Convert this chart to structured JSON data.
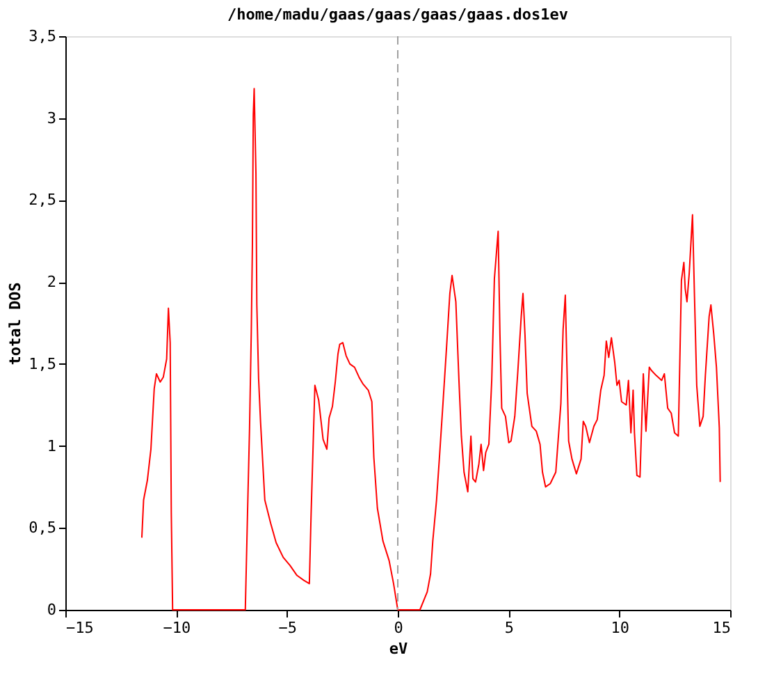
{
  "chart_data": {
    "type": "line",
    "title": "/home/madu/gaas/gaas/gaas/gaas.dos1ev",
    "xlabel": "eV",
    "ylabel": "total DOS",
    "xlim": [
      -15,
      15
    ],
    "xticks": [
      -15,
      -10,
      -5,
      0,
      5,
      10,
      15
    ],
    "ylim": [
      0,
      3.5
    ],
    "yticks": [
      0,
      {
        "value": 0.5,
        "label": "0,5"
      },
      1,
      {
        "value": 1.5,
        "label": "1,5"
      },
      2,
      {
        "value": 2.5,
        "label": "2,5"
      },
      3,
      {
        "value": 3.5,
        "label": "3,5"
      }
    ],
    "grid": false,
    "marker": "none",
    "line_style": "solid",
    "ref_lines": [
      {
        "axis": "x",
        "value": 0,
        "color": "#a0a0a0",
        "line_style": "dashed"
      }
    ],
    "series": [
      {
        "color": "#ff0000",
        "x": [
          -11.55,
          -11.47,
          -11.3,
          -11.14,
          -10.99,
          -10.89,
          -10.72,
          -10.58,
          -10.43,
          -10.35,
          -10.27,
          -10.22,
          -10.16,
          -6.88,
          -6.78,
          -6.69,
          -6.61,
          -6.56,
          -6.52,
          -6.48,
          -6.4,
          -6.36,
          -6.28,
          -6.19,
          -6.0,
          -5.74,
          -5.49,
          -5.17,
          -4.86,
          -4.55,
          -4.24,
          -3.99,
          -3.91,
          -3.74,
          -3.57,
          -3.37,
          -3.2,
          -3.1,
          -2.95,
          -2.82,
          -2.7,
          -2.62,
          -2.48,
          -2.33,
          -2.16,
          -1.95,
          -1.75,
          -1.58,
          -1.33,
          -1.17,
          -1.08,
          -0.92,
          -0.67,
          -0.39,
          -0.19,
          0.0,
          1.0,
          1.33,
          1.48,
          1.58,
          1.75,
          1.89,
          2.04,
          2.2,
          2.35,
          2.45,
          2.62,
          2.76,
          2.87,
          2.99,
          3.16,
          3.3,
          3.39,
          3.51,
          3.66,
          3.76,
          3.87,
          3.97,
          4.11,
          4.24,
          4.36,
          4.53,
          4.61,
          4.69,
          4.86,
          5.01,
          5.11,
          5.28,
          5.42,
          5.57,
          5.65,
          5.74,
          5.84,
          6.05,
          6.25,
          6.42,
          6.53,
          6.67,
          6.88,
          7.13,
          7.36,
          7.46,
          7.56,
          7.71,
          7.86,
          8.06,
          8.27,
          8.37,
          8.48,
          8.65,
          8.85,
          9.0,
          9.16,
          9.31,
          9.41,
          9.52,
          9.64,
          9.79,
          9.89,
          9.99,
          10.1,
          10.31,
          10.41,
          10.52,
          10.62,
          10.68,
          10.79,
          10.93,
          11.08,
          11.2,
          11.35,
          11.45,
          11.66,
          11.91,
          12.03,
          12.18,
          12.34,
          12.49,
          12.66,
          12.8,
          12.91,
          12.97,
          13.05,
          13.15,
          13.3,
          13.39,
          13.49,
          13.63,
          13.78,
          13.88,
          14.05,
          14.13,
          14.26,
          14.38,
          14.51,
          14.55
        ],
        "values": [
          0.44,
          0.67,
          0.79,
          0.98,
          1.35,
          1.44,
          1.39,
          1.42,
          1.53,
          1.84,
          1.63,
          0.59,
          0,
          0,
          0.59,
          1.1,
          1.7,
          2.22,
          3.02,
          3.18,
          2.66,
          1.86,
          1.41,
          1.14,
          0.67,
          0.53,
          0.41,
          0.32,
          0.27,
          0.21,
          0.18,
          0.16,
          0.59,
          1.37,
          1.28,
          1.04,
          0.98,
          1.17,
          1.24,
          1.39,
          1.56,
          1.62,
          1.63,
          1.55,
          1.5,
          1.48,
          1.42,
          1.38,
          1.34,
          1.27,
          0.93,
          0.62,
          0.42,
          0.3,
          0.16,
          0,
          0,
          0.11,
          0.22,
          0.42,
          0.67,
          0.95,
          1.26,
          1.6,
          1.93,
          2.04,
          1.88,
          1.4,
          1.06,
          0.84,
          0.72,
          1.06,
          0.8,
          0.78,
          0.89,
          1.01,
          0.85,
          0.96,
          1.01,
          1.4,
          2.02,
          2.31,
          1.68,
          1.23,
          1.18,
          1.02,
          1.03,
          1.18,
          1.46,
          1.79,
          1.93,
          1.68,
          1.32,
          1.12,
          1.09,
          1.01,
          0.84,
          0.75,
          0.77,
          0.84,
          1.26,
          1.71,
          1.92,
          1.03,
          0.92,
          0.83,
          0.92,
          1.15,
          1.12,
          1.02,
          1.12,
          1.16,
          1.34,
          1.43,
          1.64,
          1.54,
          1.66,
          1.51,
          1.37,
          1.4,
          1.27,
          1.25,
          1.4,
          1.08,
          1.34,
          1.08,
          0.82,
          0.81,
          1.44,
          1.09,
          1.48,
          1.46,
          1.43,
          1.4,
          1.44,
          1.23,
          1.2,
          1.08,
          1.06,
          2.01,
          2.12,
          1.96,
          1.88,
          2.05,
          2.41,
          1.91,
          1.37,
          1.12,
          1.18,
          1.43,
          1.79,
          1.86,
          1.68,
          1.48,
          1.11,
          0.78
        ]
      }
    ]
  }
}
